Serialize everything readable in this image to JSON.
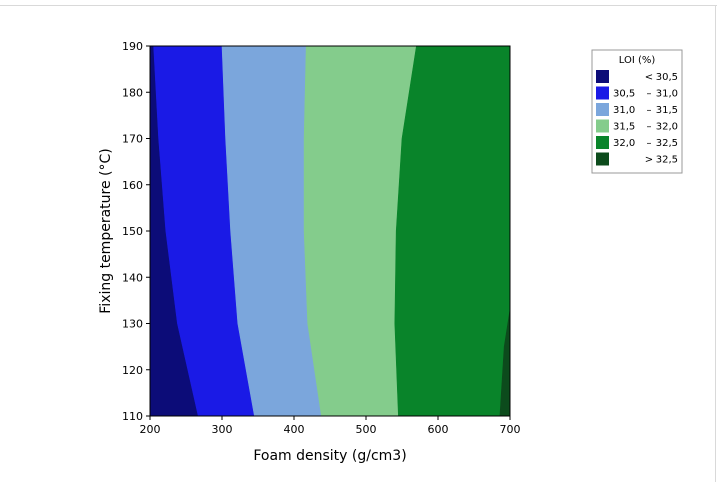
{
  "chart_data": {
    "type": "contour",
    "xlabel": "Foam density (g/cm3)",
    "ylabel": "Fixing temperature (°C)",
    "xlim": [
      200,
      700
    ],
    "ylim": [
      110,
      190
    ],
    "x_ticks": [
      "200",
      "300",
      "400",
      "500",
      "600",
      "700"
    ],
    "y_ticks": [
      "110",
      "120",
      "130",
      "140",
      "150",
      "160",
      "170",
      "180",
      "190"
    ],
    "grid": false,
    "legend": {
      "title": "LOI (%)",
      "placement": "top-right",
      "entries": [
        {
          "lo": "<",
          "hi": "30,5",
          "color": "#0c0c78"
        },
        {
          "lo": "30,5",
          "dash": "–",
          "hi": "31,0",
          "color": "#1a1ae6"
        },
        {
          "lo": "31,0",
          "dash": "–",
          "hi": "31,5",
          "color": "#7ba6dc"
        },
        {
          "lo": "31,5",
          "dash": "–",
          "hi": "32,0",
          "color": "#84cc8c"
        },
        {
          "lo": "32,0",
          "dash": "–",
          "hi": "32,5",
          "color": "#09842a"
        },
        {
          "lo": ">",
          "hi": "32,5",
          "color": "#0c4b1c"
        }
      ]
    },
    "boundaries": [
      {
        "level": "30,5",
        "points": [
          [
            205,
            190
          ],
          [
            212,
            170
          ],
          [
            222,
            150
          ],
          [
            238,
            130
          ],
          [
            267,
            110
          ]
        ]
      },
      {
        "level": "31,0",
        "points": [
          [
            300,
            190
          ],
          [
            305,
            170
          ],
          [
            312,
            150
          ],
          [
            322,
            130
          ],
          [
            345,
            110
          ]
        ]
      },
      {
        "level": "31,5",
        "points": [
          [
            417,
            190
          ],
          [
            414,
            170
          ],
          [
            414,
            150
          ],
          [
            419,
            130
          ],
          [
            438,
            110
          ]
        ]
      },
      {
        "level": "32,0",
        "points": [
          [
            570,
            190
          ],
          [
            550,
            170
          ],
          [
            542,
            150
          ],
          [
            540,
            130
          ],
          [
            545,
            110
          ]
        ]
      },
      {
        "level": "32,5",
        "points": [
          [
            700,
            133
          ],
          [
            692,
            125
          ],
          [
            686,
            110
          ]
        ]
      }
    ]
  }
}
